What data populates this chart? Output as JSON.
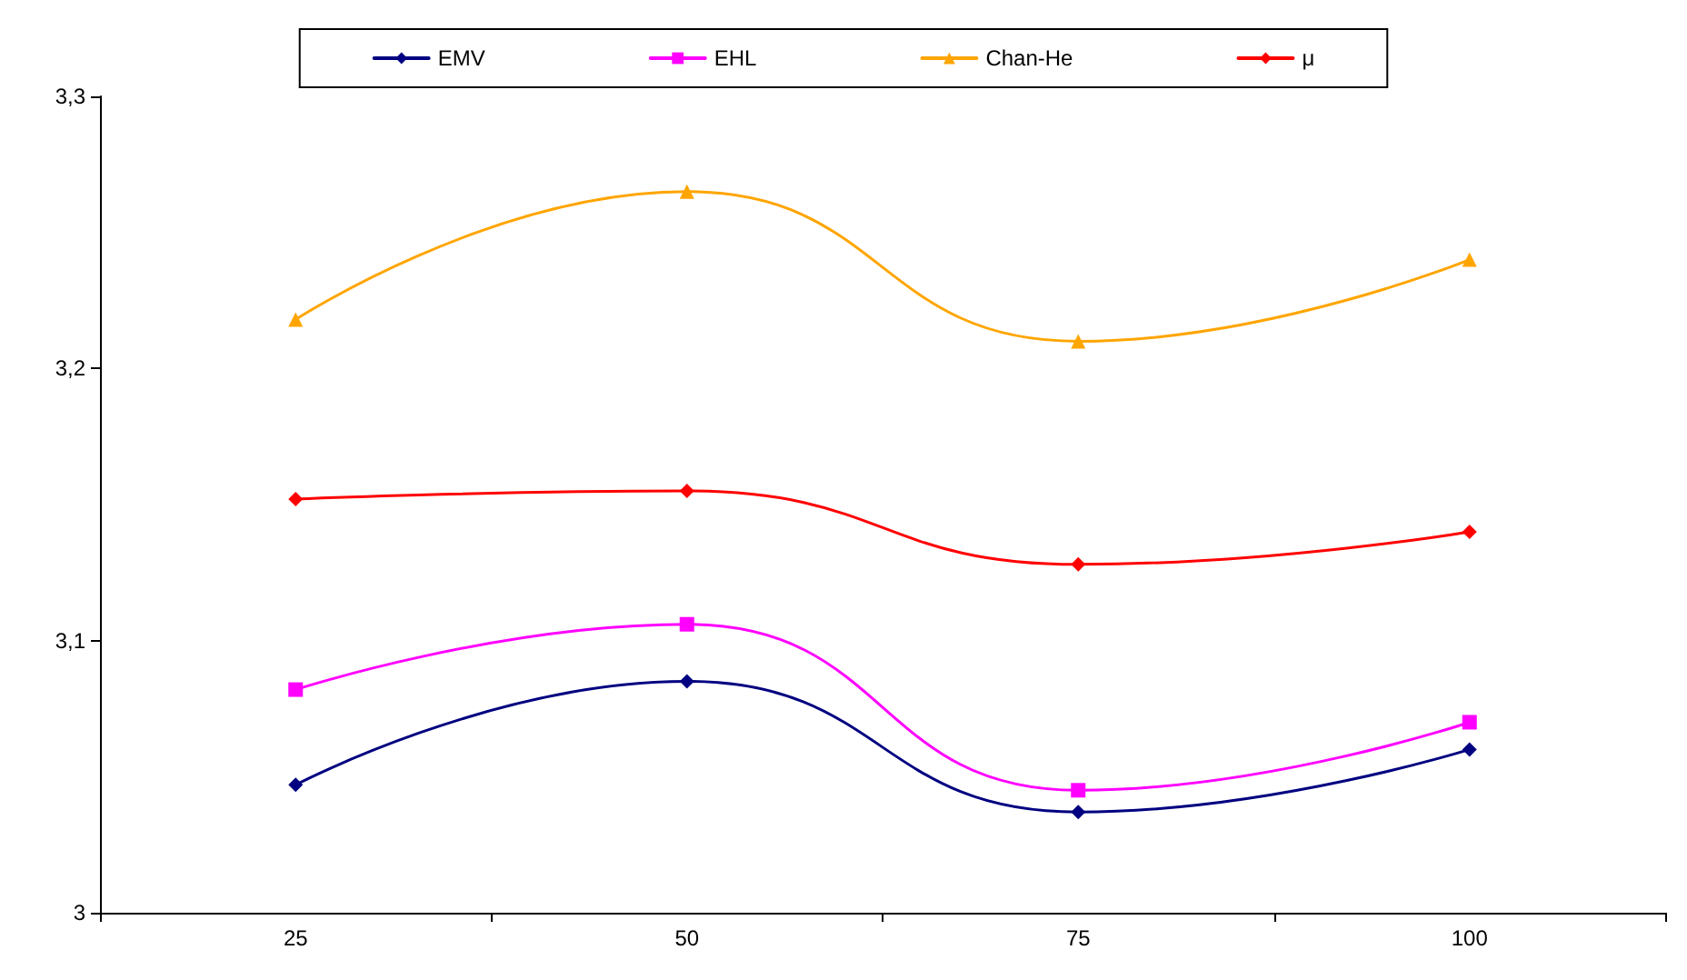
{
  "chart_data": {
    "type": "line",
    "categories": [
      "25",
      "50",
      "75",
      "100"
    ],
    "series": [
      {
        "name": "EMV",
        "color": "#000080",
        "marker": "diamond",
        "values": [
          3.047,
          3.085,
          3.037,
          3.06
        ]
      },
      {
        "name": "EHL",
        "color": "#ff00ff",
        "marker": "square",
        "values": [
          3.082,
          3.106,
          3.045,
          3.07
        ]
      },
      {
        "name": "Chan-He",
        "color": "#ffa500",
        "marker": "triangle",
        "values": [
          3.218,
          3.265,
          3.21,
          3.24
        ]
      },
      {
        "name": "μ",
        "color": "#ff0000",
        "marker": "diamond",
        "values": [
          3.152,
          3.155,
          3.128,
          3.14
        ]
      }
    ],
    "ylim": [
      3,
      3.3
    ],
    "yticks": [
      {
        "value": 3,
        "label": "3"
      },
      {
        "value": 3.1,
        "label": "3,1"
      },
      {
        "value": 3.2,
        "label": "3,2"
      },
      {
        "value": 3.3,
        "label": "3,3"
      }
    ],
    "grid": false,
    "legend": "top",
    "line_style": "solid"
  }
}
